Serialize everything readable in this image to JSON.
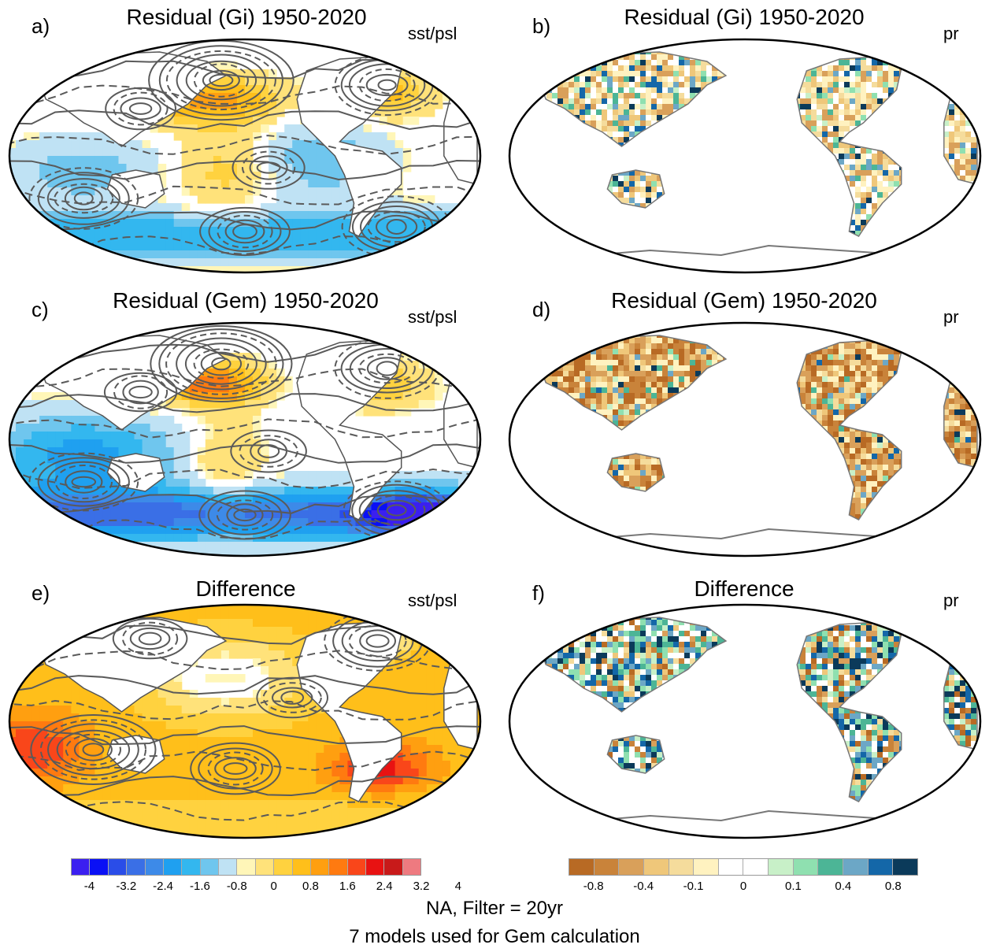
{
  "panels": [
    {
      "id": "a",
      "label": "a)",
      "title": "Residual (Gi) 1950-2020",
      "var": "sst/psl",
      "kind": "ocean",
      "scheme": "gi"
    },
    {
      "id": "b",
      "label": "b)",
      "title": "Residual (Gi) 1950-2020",
      "var": "pr",
      "kind": "land",
      "scheme": "gi"
    },
    {
      "id": "c",
      "label": "c)",
      "title": "Residual (Gem) 1950-2020",
      "var": "sst/psl",
      "kind": "ocean",
      "scheme": "gem"
    },
    {
      "id": "d",
      "label": "d)",
      "title": "Residual (Gem) 1950-2020",
      "var": "pr",
      "kind": "land",
      "scheme": "gem"
    },
    {
      "id": "e",
      "label": "e)",
      "title": "Difference",
      "var": "sst/psl",
      "kind": "ocean",
      "scheme": "diff"
    },
    {
      "id": "f",
      "label": "f)",
      "title": "Difference",
      "var": "pr",
      "kind": "land",
      "scheme": "diff"
    }
  ],
  "colorbars": {
    "sst": {
      "colors": [
        "#3b1ff0",
        "#0a10f5",
        "#2a4de8",
        "#3a6fe6",
        "#3d8ae8",
        "#1fa0f0",
        "#33b7ef",
        "#6fc6ee",
        "#bfe2f4",
        "#fff6b8",
        "#ffe27a",
        "#ffd23f",
        "#ffbf1a",
        "#ff9f10",
        "#ff7a10",
        "#f9461a",
        "#e81212",
        "#c81a1a",
        "#ee7a80"
      ],
      "ticks": [
        "-4",
        "-3.2",
        "-2.4",
        "-1.6",
        "-0.8",
        "0",
        "0.8",
        "1.6",
        "2.4",
        "3.2",
        "4"
      ]
    },
    "pr": {
      "colors": [
        "#b86a24",
        "#c9833a",
        "#d9a05a",
        "#efc77a",
        "#f5dc9c",
        "#fff2c0",
        "#ffffff",
        "#ffffff",
        "#c8f0c8",
        "#8fe0b0",
        "#4cb596",
        "#6ca7c6",
        "#1467a8",
        "#0b3a5a"
      ],
      "ticks": [
        "-0.8",
        "-0.4",
        "-0.1",
        "0",
        "0.1",
        "0.4",
        "0.8"
      ]
    }
  },
  "footer": {
    "line1": "NA, Filter = 20yr",
    "line2": "7 models used for Gem calculation"
  }
}
